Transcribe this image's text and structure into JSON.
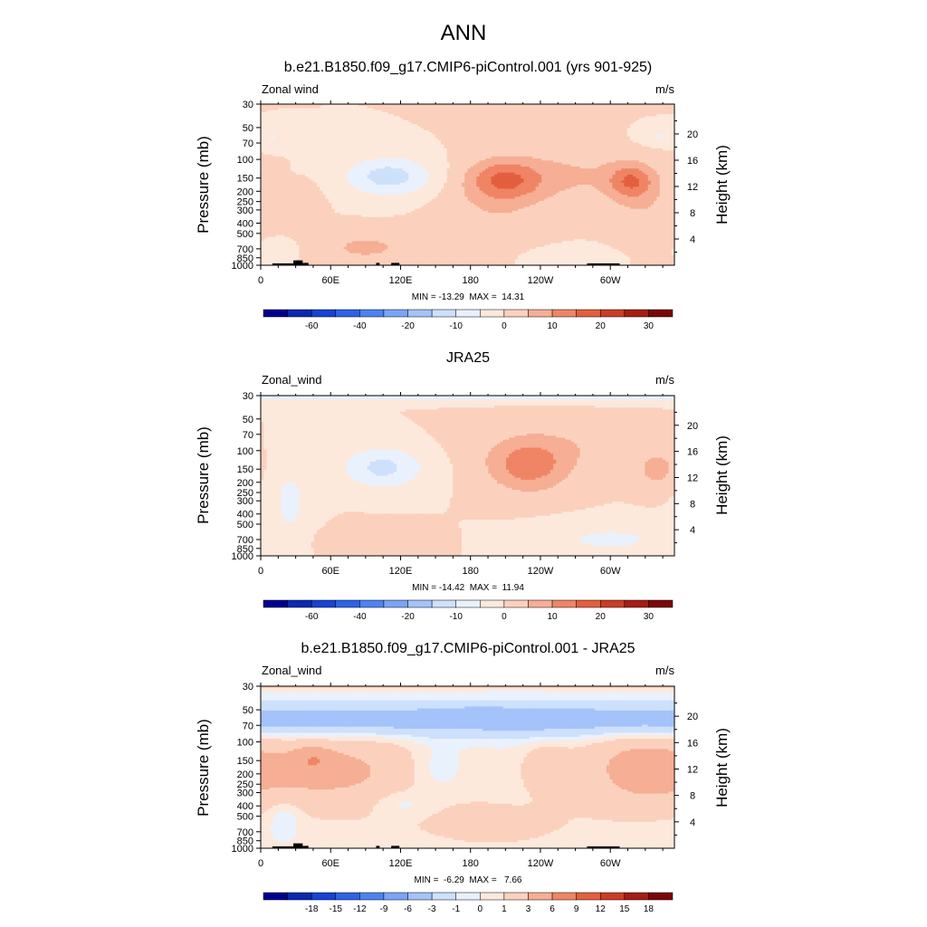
{
  "figure": {
    "title": "ANN"
  },
  "chart_data": [
    {
      "type": "heatmap",
      "title": "b.e21.B1850.f09_g17.CMIP6-piControl.001 (yrs 901-925)",
      "left_label": "Zonal wind",
      "right_label": "m/s",
      "ylabel": "Pressure (mb)",
      "ylabel_right": "Height (km)",
      "x_ticks": [
        "0",
        "60E",
        "120E",
        "180",
        "120W",
        "60W"
      ],
      "x_tick_values": [
        0,
        60,
        120,
        180,
        240,
        300
      ],
      "xlim": [
        0,
        355
      ],
      "y_ticks": [
        "30",
        "50",
        "70",
        "100",
        "150",
        "200",
        "250",
        "300",
        "400",
        "500",
        "700",
        "850",
        "1000"
      ],
      "y_tick_values": [
        30,
        50,
        70,
        100,
        150,
        200,
        250,
        300,
        400,
        500,
        700,
        850,
        1000
      ],
      "y_scale": "log",
      "ylim": [
        1000,
        30
      ],
      "height_ticks": [
        "20",
        "16",
        "12",
        "8",
        "4"
      ],
      "height_tick_values": [
        20,
        16,
        12,
        8,
        4
      ],
      "minmax": "MIN = -13.29  MAX =  14.31",
      "levels": [
        -70,
        -60,
        -50,
        -40,
        -30,
        -20,
        -15,
        -10,
        -5,
        0,
        5,
        10,
        15,
        20,
        25,
        30,
        35
      ],
      "colorbar_labels": [
        "-60",
        "-40",
        "-20",
        "-10",
        "0",
        "10",
        "20",
        "30"
      ],
      "colorbar_label_levels": [
        -60,
        -40,
        -20,
        -10,
        0,
        10,
        20,
        30
      ],
      "features": [
        {
          "lon": 210,
          "p": 155,
          "a": 14,
          "wl": 32,
          "wp": 0.45
        },
        {
          "lon": 318,
          "p": 160,
          "a": 13,
          "wl": 20,
          "wp": 0.38
        },
        {
          "lon": 270,
          "p": 140,
          "a": 5,
          "wl": 48,
          "wp": 0.6
        },
        {
          "lon": 200,
          "p": 300,
          "a": 4,
          "wl": 45,
          "wp": 0.9
        },
        {
          "lon": 330,
          "p": 300,
          "a": 4,
          "wl": 30,
          "wp": 0.8
        },
        {
          "lon": 90,
          "p": 680,
          "a": 6,
          "wl": 42,
          "wp": 0.35
        },
        {
          "lon": 40,
          "p": 300,
          "a": 5,
          "wl": 12,
          "wp": 0.45
        },
        {
          "lon": 110,
          "p": 145,
          "a": -12.5,
          "wl": 38,
          "wp": 0.42
        },
        {
          "lon": 10,
          "p": 62,
          "a": -5,
          "wl": 18,
          "wp": 0.2
        },
        {
          "lon": 340,
          "p": 60,
          "a": -5,
          "wl": 15,
          "wp": 0.18
        },
        {
          "lon": 265,
          "p": 850,
          "a": -3,
          "wl": 40,
          "wp": 0.25
        },
        {
          "lon": 15,
          "p": 720,
          "a": -5,
          "wl": 15,
          "wp": 0.2
        }
      ],
      "topography": [
        {
          "lon0": 10,
          "lon1": 30,
          "p": 960
        },
        {
          "lon0": 28,
          "lon1": 36,
          "p": 900
        },
        {
          "lon0": 36,
          "lon1": 41,
          "p": 950
        },
        {
          "lon0": 99,
          "lon1": 102,
          "p": 950
        },
        {
          "lon0": 112,
          "lon1": 119,
          "p": 950
        },
        {
          "lon0": 280,
          "lon1": 308,
          "p": 960
        }
      ]
    },
    {
      "type": "heatmap",
      "title": "JRA25",
      "left_label": "Zonal_wind",
      "right_label": "m/s",
      "ylabel": "Pressure (mb)",
      "ylabel_right": "Height (km)",
      "x_ticks": [
        "0",
        "60E",
        "120E",
        "180",
        "120W",
        "60W"
      ],
      "x_tick_values": [
        0,
        60,
        120,
        180,
        240,
        300
      ],
      "xlim": [
        0,
        355
      ],
      "y_ticks": [
        "30",
        "50",
        "70",
        "100",
        "150",
        "200",
        "250",
        "300",
        "400",
        "500",
        "700",
        "850",
        "1000"
      ],
      "y_tick_values": [
        30,
        50,
        70,
        100,
        150,
        200,
        250,
        300,
        400,
        500,
        700,
        850,
        1000
      ],
      "y_scale": "log",
      "ylim": [
        1000,
        30
      ],
      "height_ticks": [
        "20",
        "16",
        "12",
        "8",
        "4"
      ],
      "height_tick_values": [
        20,
        16,
        12,
        8,
        4
      ],
      "minmax": "MIN = -14.42  MAX =  11.94",
      "levels": [
        -70,
        -60,
        -50,
        -40,
        -30,
        -20,
        -15,
        -10,
        -5,
        0,
        5,
        10,
        15,
        20,
        25,
        30,
        35
      ],
      "colorbar_labels": [
        "-60",
        "-40",
        "-20",
        "-10",
        "0",
        "10",
        "20",
        "30"
      ],
      "colorbar_label_levels": [
        -60,
        -40,
        -20,
        -10,
        0,
        10,
        20,
        30
      ],
      "features": [
        {
          "lon": 0,
          "p": 30,
          "a": -9,
          "wl": 400,
          "wp": 0.12
        },
        {
          "lon": 230,
          "p": 145,
          "a": 12,
          "wl": 35,
          "wp": 0.55
        },
        {
          "lon": 340,
          "p": 150,
          "a": 7,
          "wl": 18,
          "wp": 0.4
        },
        {
          "lon": 250,
          "p": 90,
          "a": 4,
          "wl": 65,
          "wp": 0.5
        },
        {
          "lon": 105,
          "p": 145,
          "a": -11.5,
          "wl": 35,
          "wp": 0.45
        },
        {
          "lon": 25,
          "p": 300,
          "a": -6,
          "wl": 20,
          "wp": 1.0
        },
        {
          "lon": 300,
          "p": 700,
          "a": -6,
          "wl": 60,
          "wp": 0.35
        },
        {
          "lon": 90,
          "p": 720,
          "a": 5,
          "wl": 40,
          "wp": 0.3
        }
      ],
      "topography": []
    },
    {
      "type": "heatmap",
      "title": "b.e21.B1850.f09_g17.CMIP6-piControl.001 - JRA25",
      "left_label": "Zonal_wind",
      "right_label": "m/s",
      "ylabel": "Pressure (mb)",
      "ylabel_right": "Height (km)",
      "x_ticks": [
        "0",
        "60E",
        "120E",
        "180",
        "120W",
        "60W"
      ],
      "x_tick_values": [
        0,
        60,
        120,
        180,
        240,
        300
      ],
      "xlim": [
        0,
        355
      ],
      "y_ticks": [
        "30",
        "50",
        "70",
        "100",
        "150",
        "200",
        "250",
        "300",
        "400",
        "500",
        "700",
        "850",
        "1000"
      ],
      "y_tick_values": [
        30,
        50,
        70,
        100,
        150,
        200,
        250,
        300,
        400,
        500,
        700,
        850,
        1000
      ],
      "y_scale": "log",
      "ylim": [
        1000,
        30
      ],
      "height_ticks": [
        "20",
        "16",
        "12",
        "8",
        "4"
      ],
      "height_tick_values": [
        20,
        16,
        12,
        8,
        4
      ],
      "minmax": "MIN =  -6.29  MAX =   7.66",
      "levels": [
        -21,
        -18,
        -15,
        -12,
        -9,
        -6,
        -3,
        -1,
        0,
        1,
        3,
        6,
        9,
        12,
        15,
        18,
        21
      ],
      "colorbar_labels": [
        "-18",
        "-15",
        "-12",
        "-9",
        "-6",
        "-3",
        "-1",
        "0",
        "1",
        "3",
        "6",
        "9",
        "12",
        "15",
        "18"
      ],
      "colorbar_label_levels": [
        -18,
        -15,
        -12,
        -9,
        -6,
        -3,
        -1,
        0,
        1,
        3,
        6,
        9,
        12,
        15,
        18
      ],
      "features": [
        {
          "lon": 0,
          "p": 62,
          "a": -5,
          "wl": 600,
          "wp": 0.35
        },
        {
          "lon": 190,
          "p": 52,
          "a": -1.6,
          "wl": 20,
          "wp": 0.12
        },
        {
          "lon": 0,
          "p": 30,
          "a": 1.4,
          "wl": 600,
          "wp": 0.08
        },
        {
          "lon": 60,
          "p": 190,
          "a": 3.5,
          "wl": 90,
          "wp": 0.9
        },
        {
          "lon": 45,
          "p": 150,
          "a": 3,
          "wl": 15,
          "wp": 0.25
        },
        {
          "lon": 320,
          "p": 180,
          "a": 3,
          "wl": 50,
          "wp": 0.9
        },
        {
          "lon": 245,
          "p": 180,
          "a": 2.5,
          "wl": 20,
          "wp": 0.5
        },
        {
          "lon": 200,
          "p": 600,
          "a": 1.5,
          "wl": 80,
          "wp": 0.6
        },
        {
          "lon": 150,
          "p": 180,
          "a": -1.5,
          "wl": 25,
          "wp": 0.6
        },
        {
          "lon": 20,
          "p": 500,
          "a": -1.5,
          "wl": 15,
          "wp": 0.4
        },
        {
          "lon": 120,
          "p": 380,
          "a": -1.5,
          "wl": 25,
          "wp": 0.3
        }
      ],
      "topography": [
        {
          "lon0": 10,
          "lon1": 30,
          "p": 960
        },
        {
          "lon0": 28,
          "lon1": 36,
          "p": 900
        },
        {
          "lon0": 36,
          "lon1": 41,
          "p": 950
        },
        {
          "lon0": 99,
          "lon1": 102,
          "p": 950
        },
        {
          "lon0": 112,
          "lon1": 119,
          "p": 950
        },
        {
          "lon0": 280,
          "lon1": 308,
          "p": 960
        }
      ]
    }
  ],
  "palette": [
    "#000090",
    "#0a29b0",
    "#1742d4",
    "#2e62e6",
    "#4d82f1",
    "#7aa4f7",
    "#a4c3fa",
    "#cde0fc",
    "#e9f1fd",
    "#fde9dc",
    "#fbd1bd",
    "#f6ae94",
    "#ef8565",
    "#e35f3d",
    "#cc3c24",
    "#a51d13",
    "#7a0808"
  ]
}
